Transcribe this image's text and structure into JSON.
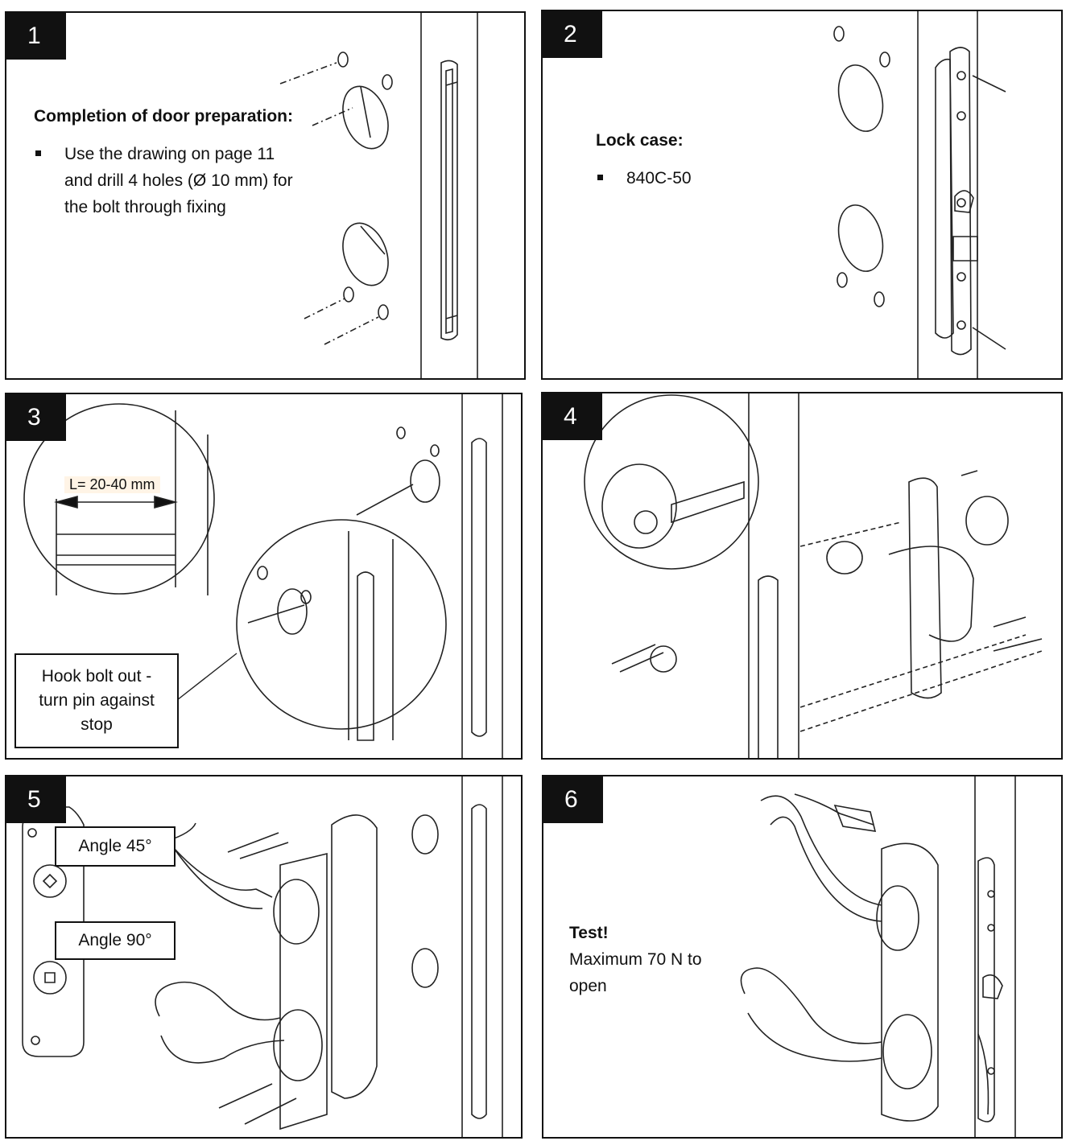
{
  "steps": [
    {
      "number": "1",
      "heading": "Completion of door preparation:",
      "bullets": [
        "Use the drawing on page 11 and drill 4 holes (Ø 10 mm) for the bolt through fixing"
      ]
    },
    {
      "number": "2",
      "heading": "Lock case:",
      "bullets": [
        "840C-50"
      ]
    },
    {
      "number": "3",
      "dimension_label": "L= 20-40 mm",
      "callout": "Hook bolt out - turn pin against stop"
    },
    {
      "number": "4"
    },
    {
      "number": "5",
      "callout_1": "Angle 45°",
      "callout_2": "Angle 90°"
    },
    {
      "number": "6",
      "heading": "Test!",
      "text": "Maximum 70 N to open"
    }
  ],
  "colors": {
    "number_badge_bg": "#111111",
    "number_badge_text": "#ffffff",
    "line_art": "#222222"
  }
}
